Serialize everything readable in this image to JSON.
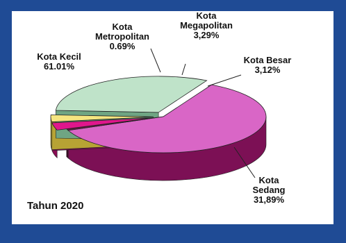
{
  "chart_data": {
    "type": "pie",
    "title": "",
    "footer": "Tahun 2020",
    "colors": {
      "background": "#1f4b95",
      "panel": "#ffffff"
    },
    "slices": [
      {
        "name": "Kota Kecil",
        "line1": "Kota Kecil",
        "line2": "61.01%",
        "value": 61.01,
        "color": "#d966c6",
        "side": "#7c1055"
      },
      {
        "name": "Kota Metropolitan",
        "line1": "Kota",
        "line2": "Metropolitan",
        "line3": "0.69%",
        "value": 0.69,
        "color": "#6a1a44",
        "side": "#3c0a25"
      },
      {
        "name": "Kota Megapolitan",
        "line1": "Kota",
        "line2": "Megapolitan",
        "line3": "3,29%",
        "value": 3.29,
        "color": "#e0168c",
        "side": "#8a0b55",
        "exploded": true
      },
      {
        "name": "Kota Besar",
        "line1": "Kota Besar",
        "line2": "3,12%",
        "value": 3.12,
        "color": "#f5e580",
        "side": "#b7a334",
        "exploded": true
      },
      {
        "name": "Kota Sedang",
        "line1": "Kota",
        "line2": "Sedang",
        "line3": "31,89%",
        "value": 31.89,
        "color": "#bfe3c9",
        "side": "#6fa583",
        "exploded": true
      }
    ]
  }
}
